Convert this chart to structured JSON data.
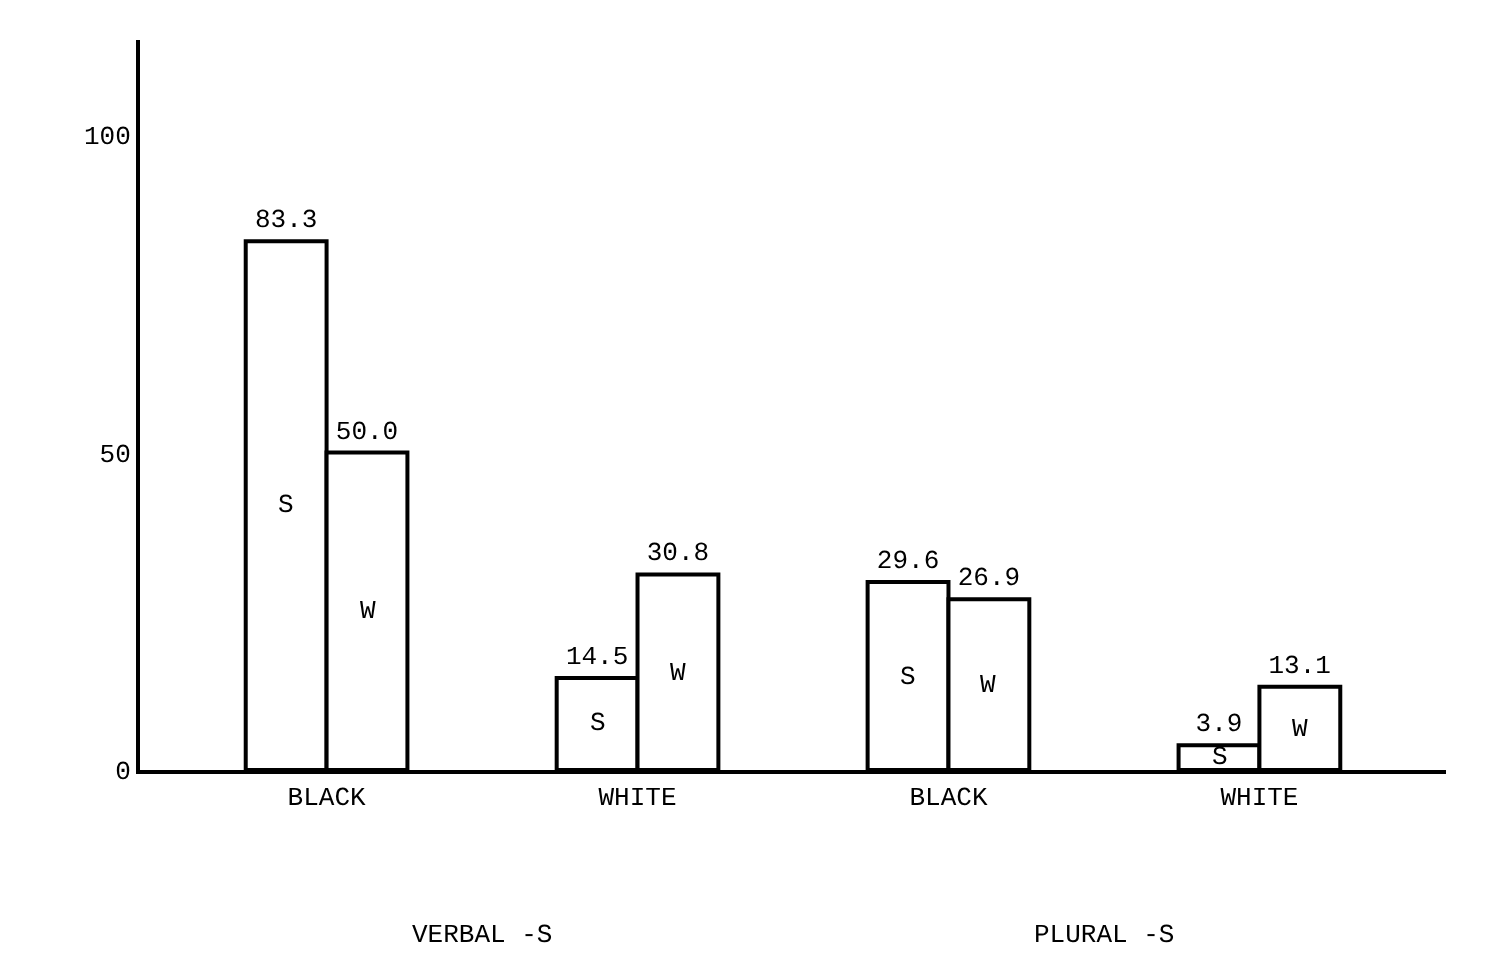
{
  "chart_data": {
    "type": "bar",
    "categories": [
      "BLACK",
      "WHITE",
      "BLACK",
      "WHITE"
    ],
    "series": [
      {
        "name": "S",
        "color": "#ffffff",
        "values": [
          83.3,
          14.5,
          29.6,
          3.9
        ]
      },
      {
        "name": "W",
        "color": "#ffffff",
        "values": [
          50.0,
          30.8,
          26.9,
          13.1
        ]
      }
    ],
    "value_labels": [
      [
        "83.3",
        "14.5",
        "29.6",
        "3.9"
      ],
      [
        "50.0",
        "30.8",
        "26.9",
        "13.1"
      ]
    ],
    "annotations": [
      "VERBAL -S",
      "PLURAL -S"
    ],
    "ylim": [
      0,
      115
    ],
    "yticks": [
      0,
      50,
      100
    ],
    "legend": false
  }
}
